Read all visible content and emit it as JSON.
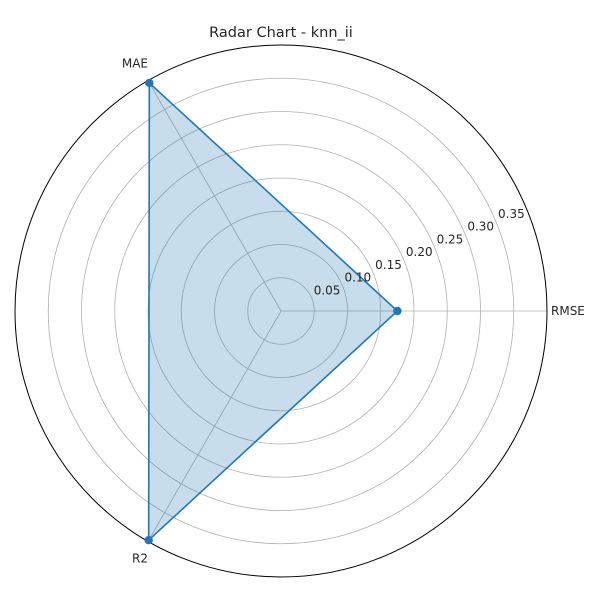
{
  "chart_data": {
    "type": "radar",
    "title": "Radar Chart - knn_ii",
    "axes": [
      "RMSE",
      "MAE",
      "R2"
    ],
    "series": [
      {
        "values": [
          0.175,
          0.396,
          0.398
        ]
      }
    ],
    "r_ticks": [
      "0.05",
      "0.10",
      "0.15",
      "0.20",
      "0.25",
      "0.30",
      "0.35"
    ],
    "r_tick_values": [
      0.05,
      0.1,
      0.15,
      0.2,
      0.25,
      0.3,
      0.35
    ],
    "rmax": 0.4,
    "grid": true,
    "colors": {
      "line": "#1f77b4",
      "fill": "#1f77b4",
      "grid": "#b0b0b0",
      "frame": "#000000"
    }
  }
}
